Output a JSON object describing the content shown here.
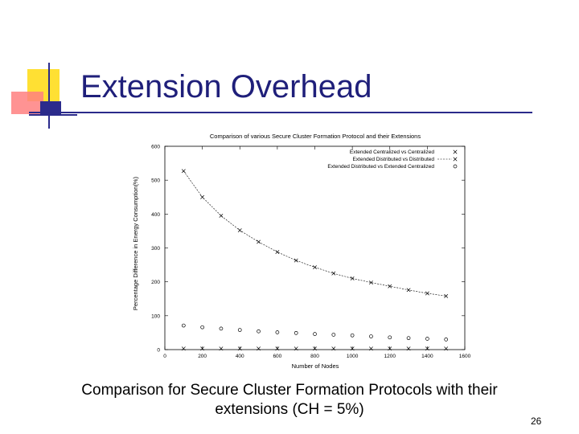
{
  "slide": {
    "title": "Extension Overhead",
    "caption": "Comparison for Secure Cluster Formation Protocols with their extensions (CH = 5%)",
    "page_number": "26"
  },
  "theme": {
    "title_color": "#1f1f7a",
    "rule_color": "#2a2a8a",
    "deco_yellow": "#ffe033",
    "deco_red": "#ff6060",
    "deco_blue": "#2b2b8c"
  },
  "chart_data": {
    "type": "scatter",
    "title": "Comparison of various Secure Cluster Formation Protocol and their Extensions",
    "xlabel": "Number of Nodes",
    "ylabel": "Percentage Difference in Energy Consumption(%)",
    "xlim": [
      0,
      1600
    ],
    "ylim": [
      0,
      600
    ],
    "xticks": [
      0,
      200,
      400,
      600,
      800,
      1000,
      1200,
      1400,
      1600
    ],
    "yticks": [
      0,
      100,
      200,
      300,
      400,
      500,
      600
    ],
    "legend_position": "top-right",
    "grid": false,
    "series": [
      {
        "name": "Extended Centralized vs Centralized",
        "marker": "x",
        "line": false,
        "x": [
          100,
          200,
          300,
          400,
          500,
          600,
          700,
          800,
          900,
          1000,
          1100,
          1200,
          1300,
          1400,
          1500
        ],
        "y": [
          3,
          3,
          3,
          3,
          3,
          3,
          3,
          3,
          3,
          3,
          3,
          3,
          3,
          3,
          3
        ]
      },
      {
        "name": "Extended Distributed vs Distributed",
        "marker": "x",
        "line": true,
        "x": [
          100,
          200,
          300,
          400,
          500,
          600,
          700,
          800,
          900,
          1000,
          1100,
          1200,
          1300,
          1400,
          1500
        ],
        "y": [
          527,
          450,
          395,
          352,
          318,
          288,
          263,
          243,
          225,
          210,
          198,
          187,
          176,
          166,
          158
        ]
      },
      {
        "name": "Extended Distributed vs Extended Centralized",
        "marker": "o",
        "line": false,
        "x": [
          100,
          200,
          300,
          400,
          500,
          600,
          700,
          800,
          900,
          1000,
          1100,
          1200,
          1300,
          1400,
          1500
        ],
        "y": [
          71,
          66,
          62,
          58,
          54,
          51,
          49,
          46,
          44,
          42,
          39,
          36,
          34,
          32,
          30
        ]
      }
    ]
  }
}
